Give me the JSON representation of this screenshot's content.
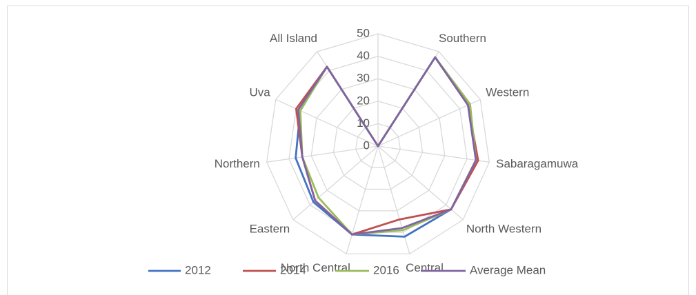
{
  "chart_data": {
    "type": "radar",
    "categories": [
      null,
      "Southern",
      "Western",
      "Sabaragamuwa",
      "North Western",
      "Central",
      "North Central",
      "Eastern",
      "Northern",
      "Uva",
      "All Island"
    ],
    "series": [
      {
        "name": "2012",
        "color": "#4472c4",
        "values": [
          0,
          47,
          44,
          44,
          43,
          42,
          41,
          38,
          37,
          38,
          42
        ]
      },
      {
        "name": "2014",
        "color": "#c0504d",
        "values": [
          0,
          47,
          44,
          45,
          43,
          34,
          41,
          37,
          34,
          40,
          42
        ]
      },
      {
        "name": "2016",
        "color": "#9bbb59",
        "values": [
          0,
          47,
          45,
          44,
          43,
          39,
          41,
          35,
          34,
          38,
          42
        ]
      },
      {
        "name": "Average Mean",
        "color": "#8064a2",
        "values": [
          0,
          47,
          44,
          44,
          43,
          38,
          41,
          37,
          34,
          39,
          42
        ]
      }
    ],
    "rlim": [
      0,
      50
    ],
    "rticks": [
      0,
      10,
      20,
      30,
      40,
      50
    ],
    "grid": true,
    "legend": "bottom"
  }
}
